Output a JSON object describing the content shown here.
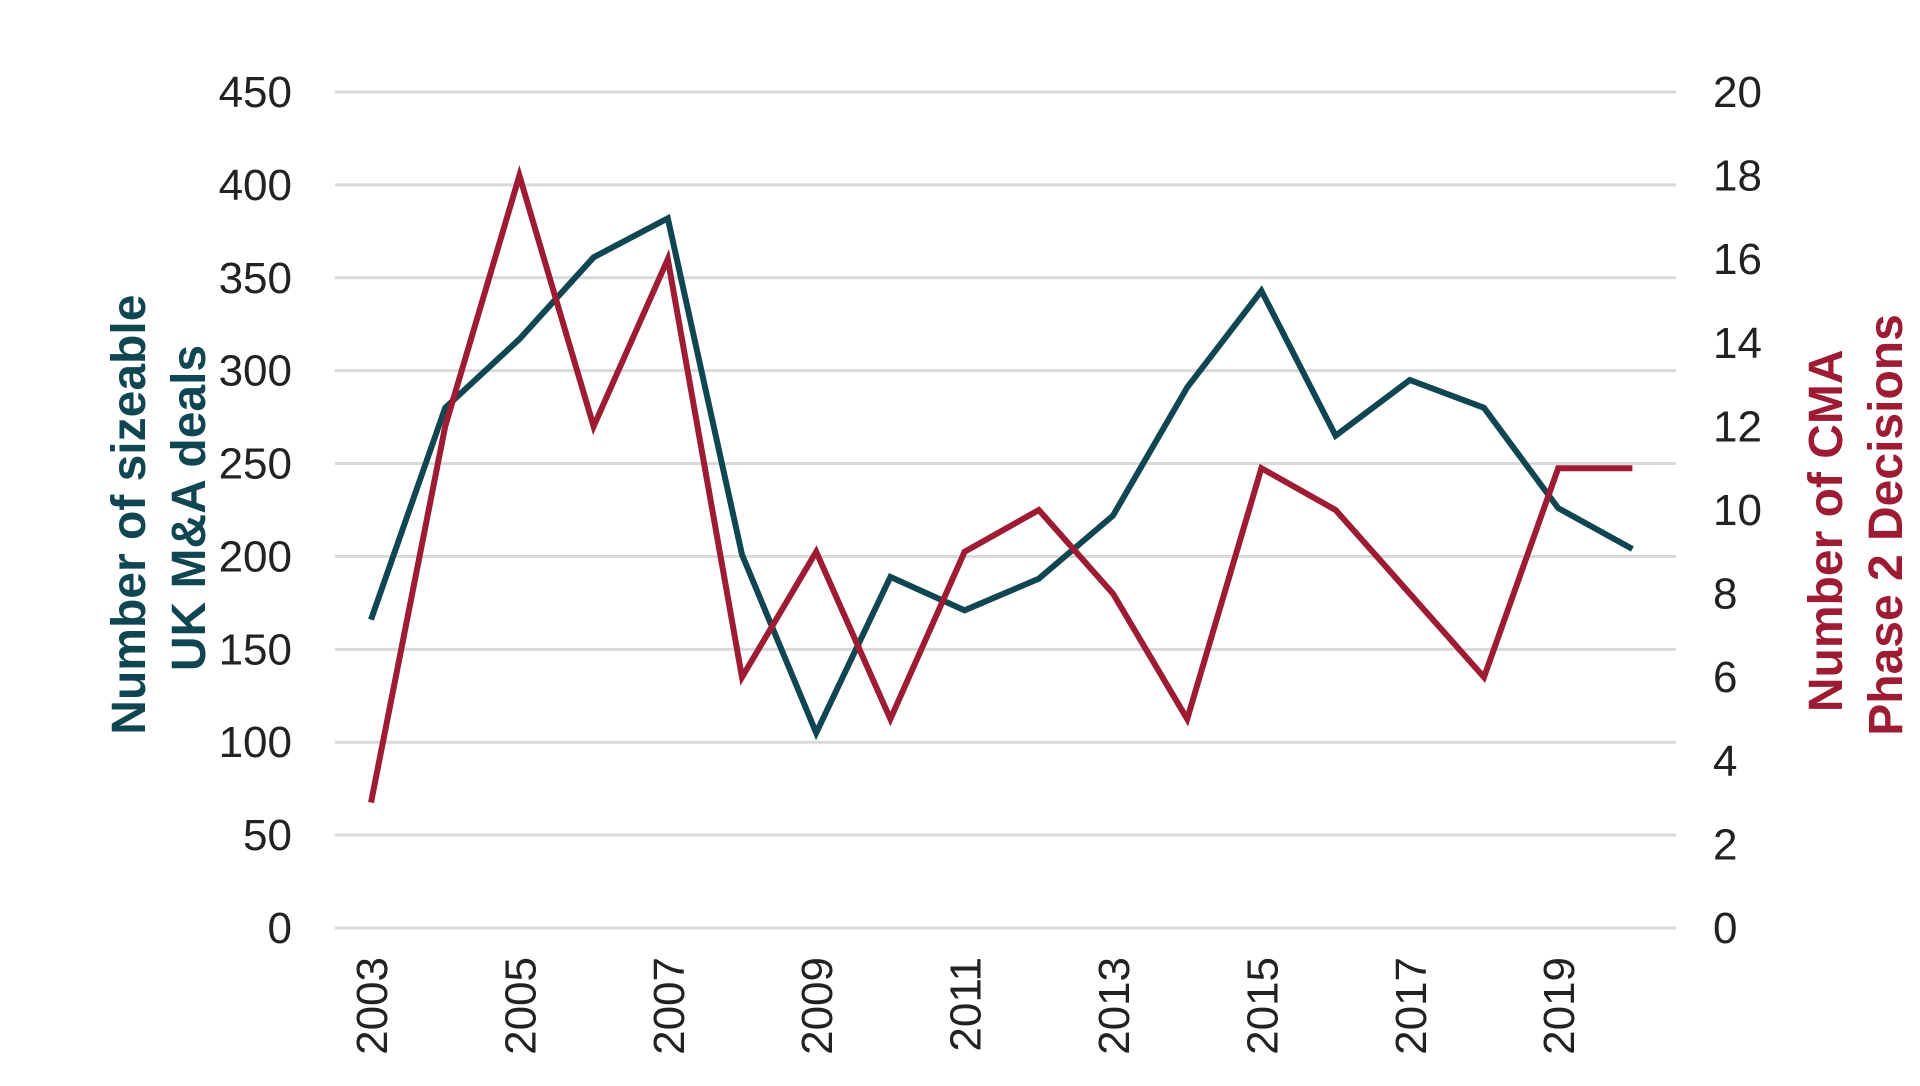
{
  "chart_data": {
    "type": "line",
    "x": [
      2003,
      2004,
      2005,
      2006,
      2007,
      2008,
      2009,
      2010,
      2011,
      2012,
      2013,
      2014,
      2015,
      2016,
      2017,
      2018,
      2019,
      2020
    ],
    "x_tick_labels": [
      "2003",
      "2005",
      "2007",
      "2009",
      "2011",
      "2013",
      "2015",
      "2017",
      "2019"
    ],
    "series": [
      {
        "name": "Number of sizeable UK M&A deals",
        "axis": "left",
        "color": "#0f4651",
        "values": [
          166,
          280,
          317,
          361,
          382,
          201,
          105,
          189,
          171,
          188,
          222,
          291,
          343,
          265,
          295,
          280,
          226,
          204
        ]
      },
      {
        "name": "Number of CMA Phase 2 Decisions",
        "axis": "right",
        "color": "#9e1b34",
        "values": [
          3,
          12,
          18,
          12,
          16,
          6,
          9,
          5,
          9,
          10,
          8,
          5,
          11,
          10,
          8,
          6,
          11,
          11
        ]
      }
    ],
    "y_left": {
      "label_lines": [
        "Number of sizeable",
        "UK M&A deals"
      ],
      "ylim": [
        0,
        450
      ],
      "ticks": [
        "0",
        "50",
        "100",
        "150",
        "200",
        "250",
        "300",
        "350",
        "400",
        "450"
      ]
    },
    "y_right": {
      "label_lines": [
        "Number of CMA",
        "Phase 2 Decisions"
      ],
      "ylim": [
        0,
        20
      ],
      "ticks": [
        "0",
        "2",
        "4",
        "6",
        "8",
        "10",
        "12",
        "14",
        "16",
        "18",
        "20"
      ]
    },
    "grid": true,
    "legend": "none",
    "colors": {
      "left_axis_title": "#0f4651",
      "right_axis_title": "#9e1b34",
      "gridline": "#d9d9d9",
      "tick_text": "#222222"
    }
  }
}
